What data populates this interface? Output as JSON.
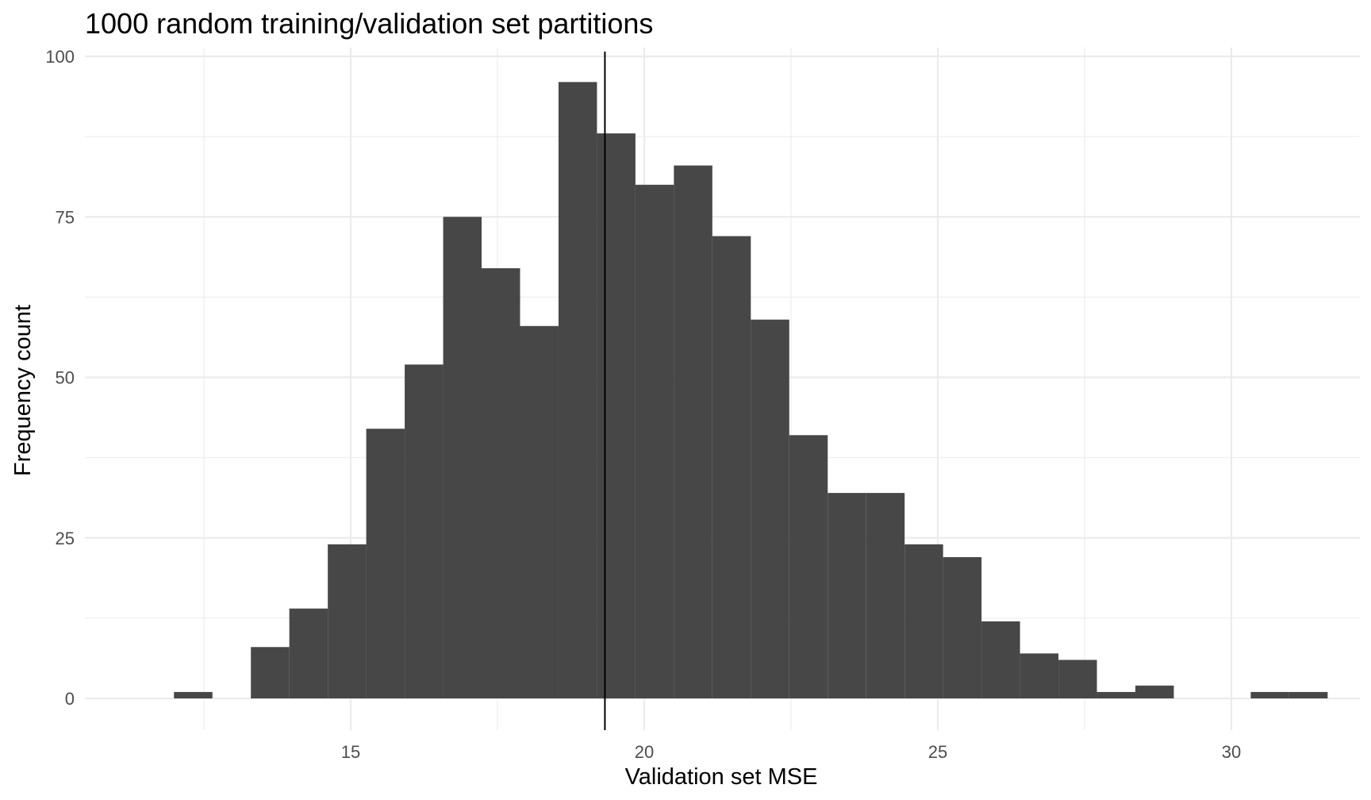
{
  "chart_data": {
    "type": "histogram",
    "title": "1000 random training/validation set partitions",
    "xlabel": "Validation set MSE",
    "ylabel": "Frequency count",
    "xlim": [
      11,
      32
    ],
    "ylim": [
      0,
      100
    ],
    "x_ticks": [
      15,
      20,
      25,
      30
    ],
    "y_ticks": [
      0,
      25,
      50,
      75,
      100
    ],
    "bin_width": 0.655,
    "bins": [
      {
        "x0": 11.99,
        "x1": 12.645,
        "count": 1
      },
      {
        "x0": 12.645,
        "x1": 13.3,
        "count": 0
      },
      {
        "x0": 13.3,
        "x1": 13.955,
        "count": 8
      },
      {
        "x0": 13.955,
        "x1": 14.61,
        "count": 14
      },
      {
        "x0": 14.61,
        "x1": 15.265,
        "count": 24
      },
      {
        "x0": 15.265,
        "x1": 15.92,
        "count": 42
      },
      {
        "x0": 15.92,
        "x1": 16.575,
        "count": 52
      },
      {
        "x0": 16.575,
        "x1": 17.23,
        "count": 75
      },
      {
        "x0": 17.23,
        "x1": 17.885,
        "count": 67
      },
      {
        "x0": 17.885,
        "x1": 18.54,
        "count": 58
      },
      {
        "x0": 18.54,
        "x1": 19.195,
        "count": 96
      },
      {
        "x0": 19.195,
        "x1": 19.85,
        "count": 88
      },
      {
        "x0": 19.85,
        "x1": 20.505,
        "count": 80
      },
      {
        "x0": 20.505,
        "x1": 21.16,
        "count": 83
      },
      {
        "x0": 21.16,
        "x1": 21.815,
        "count": 72
      },
      {
        "x0": 21.815,
        "x1": 22.47,
        "count": 59
      },
      {
        "x0": 22.47,
        "x1": 23.125,
        "count": 41
      },
      {
        "x0": 23.125,
        "x1": 23.78,
        "count": 32
      },
      {
        "x0": 23.78,
        "x1": 24.435,
        "count": 32
      },
      {
        "x0": 24.435,
        "x1": 25.09,
        "count": 24
      },
      {
        "x0": 25.09,
        "x1": 25.745,
        "count": 22
      },
      {
        "x0": 25.745,
        "x1": 26.4,
        "count": 12
      },
      {
        "x0": 26.4,
        "x1": 27.055,
        "count": 7
      },
      {
        "x0": 27.055,
        "x1": 27.71,
        "count": 6
      },
      {
        "x0": 27.71,
        "x1": 28.365,
        "count": 1
      },
      {
        "x0": 28.365,
        "x1": 29.02,
        "count": 2
      },
      {
        "x0": 29.02,
        "x1": 29.675,
        "count": 0
      },
      {
        "x0": 29.675,
        "x1": 30.33,
        "count": 0
      },
      {
        "x0": 30.33,
        "x1": 30.985,
        "count": 1
      },
      {
        "x0": 30.985,
        "x1": 31.64,
        "count": 1
      }
    ],
    "vline_x": 19.33,
    "grid": true,
    "bar_color": "#474747",
    "vline_color": "#000000"
  }
}
